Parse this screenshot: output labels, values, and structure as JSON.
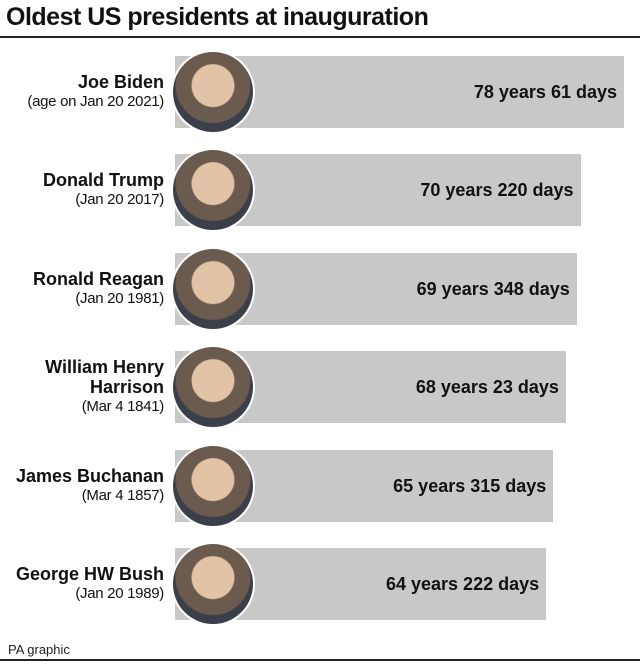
{
  "chart_data": {
    "type": "bar",
    "orientation": "horizontal",
    "title": "Oldest US presidents at inauguration",
    "source": "PA graphic",
    "categories": [
      "Joe Biden",
      "Donald Trump",
      "Ronald Reagan",
      "William Henry Harrison",
      "James Buchanan",
      "George HW Bush"
    ],
    "subtitles": [
      "(age on Jan 20 2021)",
      "(Jan 20 2017)",
      "(Jan 20 1981)",
      "(Mar 4 1841)",
      "(Mar 4 1857)",
      "(Jan 20 1989)"
    ],
    "values": [
      78.17,
      70.6,
      69.95,
      68.06,
      65.86,
      64.61
    ],
    "value_labels": [
      "78 years 61 days",
      "70 years 220 days",
      "69 years 348 days",
      "68 years 23 days",
      "65 years 315 days",
      "64 years 222 days"
    ],
    "color": "#c8c8c8"
  }
}
